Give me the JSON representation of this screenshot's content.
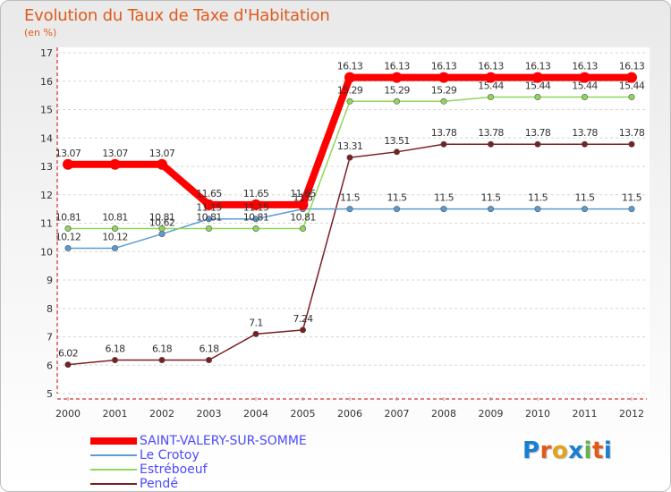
{
  "header": {
    "title": "Evolution du Taux de Taxe d'Habitation",
    "unit": "(en %)"
  },
  "logo": {
    "text": "Proxiti",
    "colors": [
      "#1a7fd1",
      "#e05a1c",
      "#e0a21c",
      "#1a7fd1",
      "#6ab04c",
      "#e05a1c",
      "#1a7fd1"
    ]
  },
  "chart_data": {
    "type": "line",
    "title": "Evolution du Taux de Taxe d'Habitation",
    "ylabel": "(en %)",
    "xlabel": "",
    "x": [
      "2000",
      "2001",
      "2002",
      "2003",
      "2004",
      "2005",
      "2006",
      "2007",
      "2008",
      "2009",
      "2010",
      "2011",
      "2012"
    ],
    "ylim": [
      5,
      17
    ],
    "yticks": [
      "5",
      "6",
      "7",
      "8",
      "9",
      "10",
      "11",
      "12",
      "13",
      "14",
      "15",
      "16",
      "17"
    ],
    "grid": "horizontal dashed",
    "legend": "bottom-left",
    "series": [
      {
        "name": "Pendé",
        "color": "#7a1f22",
        "values": [
          6.02,
          6.18,
          6.18,
          6.18,
          7.1,
          7.24,
          13.31,
          13.51,
          13.78,
          13.78,
          13.78,
          13.78,
          13.78
        ],
        "labels": [
          "6.02",
          "6.18",
          "6.18",
          "6.18",
          "7.1",
          "7.24",
          "13.31",
          "13.51",
          "13.78",
          "13.78",
          "13.78",
          "13.78",
          "13.78"
        ]
      },
      {
        "name": "Le Crotoy",
        "color": "#5b9bd5",
        "values": [
          10.12,
          10.12,
          10.62,
          11.15,
          11.15,
          11.5,
          11.5,
          11.5,
          11.5,
          11.5,
          11.5,
          11.5,
          11.5
        ],
        "labels": [
          "10.12",
          "10.12",
          "10.62",
          "11.15",
          "11.15",
          "11.5",
          "11.5",
          "11.5",
          "11.5",
          "11.5",
          "11.5",
          "11.5",
          "11.5"
        ]
      },
      {
        "name": "Estréboeuf",
        "color": "#8fd65a",
        "values": [
          10.81,
          10.81,
          10.81,
          10.81,
          10.81,
          10.81,
          15.29,
          15.29,
          15.29,
          15.44,
          15.44,
          15.44,
          15.44
        ],
        "labels": [
          "10.81",
          "10.81",
          "10.81",
          "10.81",
          "10.81",
          "10.81",
          "15.29",
          "15.29",
          "15.29",
          "15.44",
          "15.44",
          "15.44",
          "15.44"
        ]
      },
      {
        "name": "SAINT-VALERY-SUR-SOMME",
        "color": "#ff0000",
        "values": [
          13.07,
          13.07,
          13.07,
          11.65,
          11.65,
          11.65,
          16.13,
          16.13,
          16.13,
          16.13,
          16.13,
          16.13,
          16.13
        ],
        "labels": [
          "13.07",
          "13.07",
          "13.07",
          "11.65",
          "11.65",
          "11.65",
          "16.13",
          "16.13",
          "16.13",
          "16.13",
          "16.13",
          "16.13",
          "16.13"
        ]
      }
    ],
    "legend_entries": [
      {
        "name": "SAINT-VALERY-SUR-SOMME",
        "color": "#ff0000"
      },
      {
        "name": "Le Crotoy",
        "color": "#5b9bd5"
      },
      {
        "name": "Estréboeuf",
        "color": "#8fd65a"
      },
      {
        "name": "Pendé",
        "color": "#7a1f22"
      }
    ]
  },
  "colors": {
    "title": "#e05a1c",
    "legend_text": "#4a4aff",
    "axis": "#cc0000"
  }
}
